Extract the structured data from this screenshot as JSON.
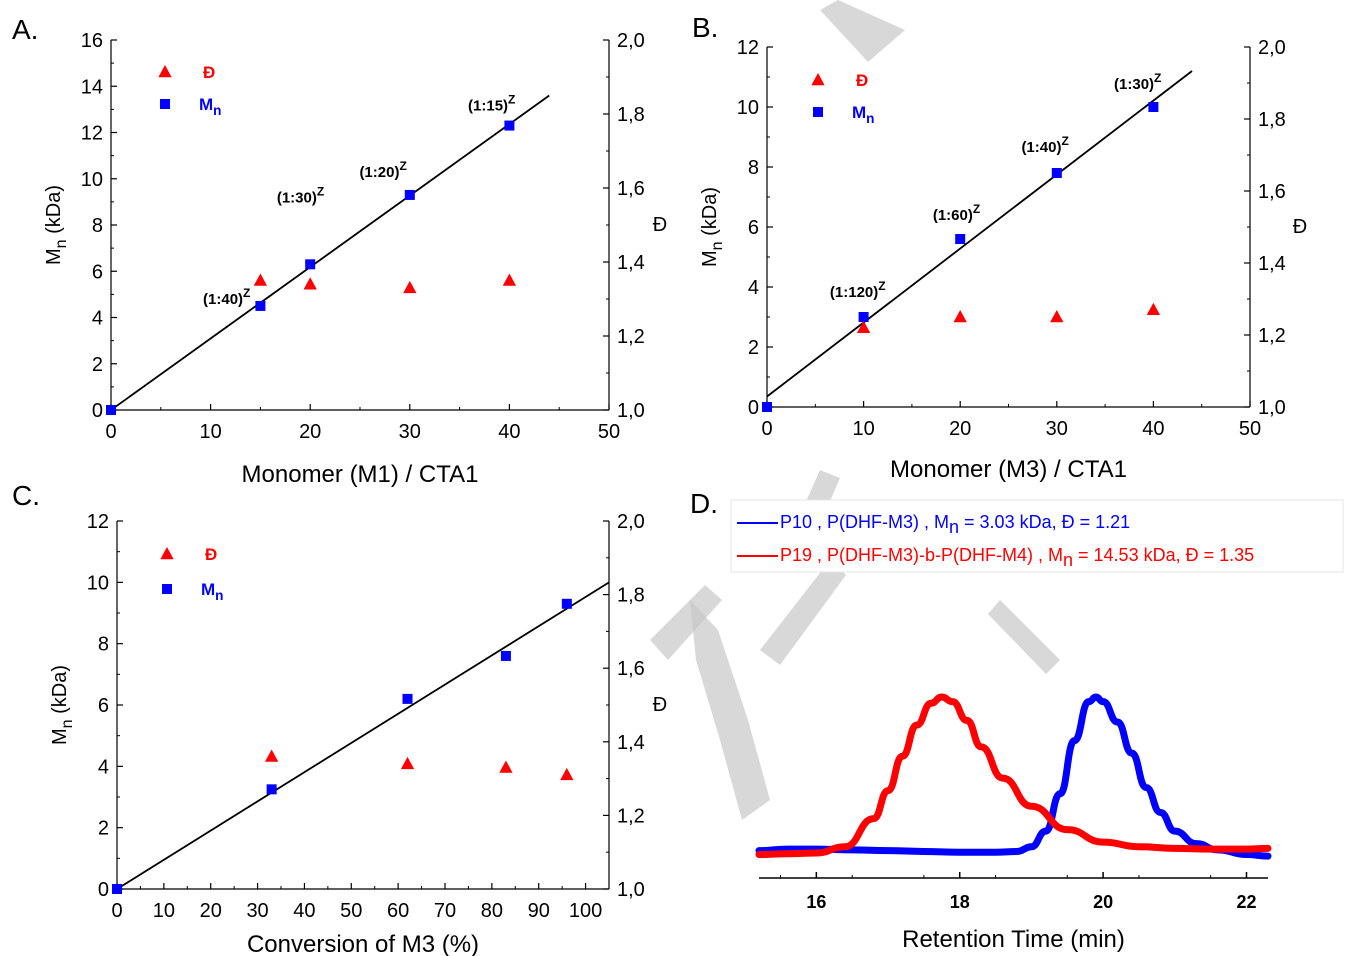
{
  "colors": {
    "mn": "#0000ff",
    "dispersity": "#ff0000",
    "fit": "#000000",
    "watermark": "#c8c8c8"
  },
  "panels": {
    "a": "A.",
    "b": "B.",
    "c": "C.",
    "d": "D."
  },
  "chart_data": [
    {
      "panel": "A.",
      "type": "scatter",
      "xlabel": "Monomer (M1) / CTA1",
      "ylabel": "Mn (kDa)",
      "ylabel_main": "M",
      "ylabel_sub": "n",
      "ylabel_rest": " (kDa)",
      "y2label": "Đ",
      "xlim": [
        0,
        50
      ],
      "ylim": [
        0,
        16
      ],
      "y2lim": [
        1.0,
        2.0
      ],
      "xticks": [
        "0",
        "10",
        "20",
        "30",
        "40",
        "50"
      ],
      "yticks": [
        "0",
        "2",
        "4",
        "6",
        "8",
        "10",
        "12",
        "14",
        "16"
      ],
      "y2ticks": [
        "1,0",
        "1,2",
        "1,4",
        "1,6",
        "1,8",
        "2,0"
      ],
      "legend": {
        "dispersity_label": "Đ",
        "mn_main": "M",
        "mn_sub": "n"
      },
      "series": [
        {
          "name": "Mn",
          "x": [
            0,
            15,
            20,
            30,
            40
          ],
          "y": [
            0,
            4.5,
            6.3,
            9.3,
            12.3
          ]
        },
        {
          "name": "Đ",
          "axis": "right",
          "x": [
            15,
            20,
            30,
            40
          ],
          "y": [
            1.35,
            1.34,
            1.33,
            1.35
          ]
        }
      ],
      "fit_line": {
        "x": [
          0,
          44
        ],
        "y": [
          0,
          13.6
        ]
      },
      "annotations": [
        {
          "text": "(1:40)",
          "sup": "Z",
          "x": 15,
          "y": 4.5
        },
        {
          "text": "(1:30)",
          "sup": "Z",
          "x": 20,
          "y": 6.3
        },
        {
          "text": "(1:20)",
          "sup": "Z",
          "x": 30,
          "y": 9.3
        },
        {
          "text": "(1:15)",
          "sup": "Z",
          "x": 40,
          "y": 12.3
        }
      ]
    },
    {
      "panel": "B.",
      "type": "scatter",
      "xlabel": "Monomer (M3) / CTA1",
      "ylabel": "Mn (kDa)",
      "ylabel_main": "M",
      "ylabel_sub": "n",
      "ylabel_rest": " (kDa)",
      "y2label": "Đ",
      "xlim": [
        0,
        50
      ],
      "ylim": [
        0,
        12
      ],
      "y2lim": [
        1.0,
        2.0
      ],
      "xticks": [
        "0",
        "10",
        "20",
        "30",
        "40",
        "50"
      ],
      "yticks": [
        "0",
        "2",
        "4",
        "6",
        "8",
        "10",
        "12"
      ],
      "y2ticks": [
        "1,0",
        "1,2",
        "1,4",
        "1,6",
        "1,8",
        "2,0"
      ],
      "legend": {
        "dispersity_label": "Đ",
        "mn_main": "M",
        "mn_sub": "n"
      },
      "series": [
        {
          "name": "Mn",
          "x": [
            0,
            10,
            20,
            30,
            40
          ],
          "y": [
            0,
            3.0,
            5.6,
            7.8,
            10.0
          ]
        },
        {
          "name": "Đ",
          "axis": "right",
          "x": [
            10,
            20,
            30,
            40
          ],
          "y": [
            1.22,
            1.25,
            1.25,
            1.27
          ]
        }
      ],
      "fit_line": {
        "x": [
          0,
          44
        ],
        "y": [
          0.35,
          11.2
        ]
      },
      "annotations": [
        {
          "text": "(1:120)",
          "sup": "Z",
          "x": 10,
          "y": 3.0
        },
        {
          "text": "(1:60)",
          "sup": "Z",
          "x": 20,
          "y": 5.6
        },
        {
          "text": "(1:40)",
          "sup": "Z",
          "x": 30,
          "y": 7.8
        },
        {
          "text": "(1:30)",
          "sup": "Z",
          "x": 40,
          "y": 10.0
        }
      ]
    },
    {
      "panel": "C.",
      "type": "scatter",
      "xlabel": "Conversion of M3 (%)",
      "ylabel": "Mn (kDa)",
      "ylabel_main": "M",
      "ylabel_sub": "n",
      "ylabel_rest": " (kDa)",
      "y2label": "Đ",
      "xlim": [
        0,
        105
      ],
      "ylim": [
        0,
        12
      ],
      "y2lim": [
        1.0,
        2.0
      ],
      "xtick_values": [
        0,
        10,
        20,
        30,
        40,
        50,
        60,
        70,
        80,
        90,
        100
      ],
      "xticks": [
        "0",
        "10",
        "20",
        "30",
        "40",
        "50",
        "60",
        "70",
        "80",
        "90",
        "100"
      ],
      "yticks": [
        "0",
        "2",
        "4",
        "6",
        "8",
        "10",
        "12"
      ],
      "y2ticks": [
        "1,0",
        "1,2",
        "1,4",
        "1,6",
        "1,8",
        "2,0"
      ],
      "legend": {
        "dispersity_label": "Đ",
        "mn_main": "M",
        "mn_sub": "n"
      },
      "series": [
        {
          "name": "Mn",
          "x": [
            0,
            33,
            62,
            83,
            96
          ],
          "y": [
            0,
            3.25,
            6.2,
            7.6,
            9.3
          ]
        },
        {
          "name": "Đ",
          "axis": "right",
          "x": [
            33,
            62,
            83,
            96
          ],
          "y": [
            1.36,
            1.34,
            1.33,
            1.31
          ]
        }
      ],
      "fit_line": {
        "x": [
          0,
          105
        ],
        "y": [
          0,
          10.0
        ]
      }
    },
    {
      "panel": "D.",
      "type": "line",
      "xlabel": "Retention Time (min)",
      "xlim": [
        15.2,
        22.3
      ],
      "xtick_values": [
        16,
        18,
        20,
        22
      ],
      "xticks": [
        "16",
        "18",
        "20",
        "22"
      ],
      "legend_entries": [
        {
          "text_a": "P10 , P(DHF-M3) , M",
          "sub": "n",
          "text_b": " = 3.03 kDa,  Đ = 1.21"
        },
        {
          "text_a": "P19 , P(DHF-M3)-b-P(DHF-M4) , M",
          "sub": "n",
          "text_b": " = 14.53 kDa,  Đ = 1.35"
        }
      ],
      "series": [
        {
          "name": "P10",
          "x": [
            15.2,
            15.6,
            16.0,
            16.5,
            17.0,
            17.5,
            18.0,
            18.5,
            18.8,
            19.0,
            19.2,
            19.4,
            19.6,
            19.8,
            19.9,
            20.0,
            20.2,
            20.4,
            20.6,
            20.8,
            21.0,
            21.3,
            21.6,
            22.0,
            22.3
          ],
          "y": [
            0.015,
            0.025,
            0.025,
            0.02,
            0.015,
            0.01,
            0.005,
            0.005,
            0.01,
            0.04,
            0.14,
            0.38,
            0.72,
            0.97,
            1.0,
            0.97,
            0.84,
            0.64,
            0.42,
            0.26,
            0.14,
            0.06,
            0.02,
            -0.01,
            -0.02
          ]
        },
        {
          "name": "P19",
          "x": [
            15.2,
            15.6,
            16.0,
            16.4,
            16.8,
            17.0,
            17.2,
            17.4,
            17.6,
            17.75,
            17.9,
            18.1,
            18.3,
            18.6,
            19.0,
            19.5,
            20.0,
            20.5,
            21.0,
            21.5,
            22.0,
            22.3
          ],
          "y": [
            -0.01,
            -0.005,
            0.0,
            0.04,
            0.22,
            0.4,
            0.62,
            0.82,
            0.96,
            1.0,
            0.97,
            0.85,
            0.68,
            0.48,
            0.3,
            0.15,
            0.07,
            0.04,
            0.03,
            0.025,
            0.025,
            0.03
          ]
        }
      ]
    }
  ]
}
